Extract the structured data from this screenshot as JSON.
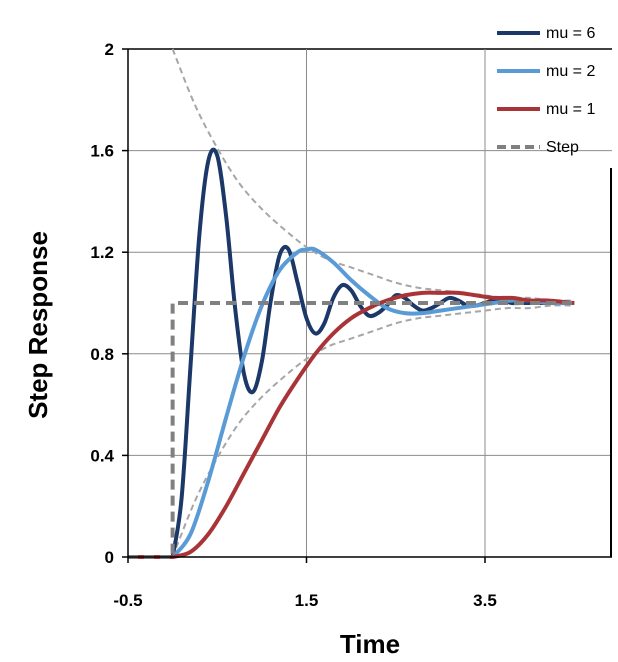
{
  "chart_data": {
    "type": "line",
    "title": "",
    "xlabel": "Time",
    "ylabel": "Step Response",
    "xlim": [
      -0.5,
      4.5
    ],
    "ylim": [
      0,
      2
    ],
    "x_ticks": [
      -0.5,
      1.5,
      3.5
    ],
    "x_tick_labels": [
      "-0.5",
      "1.5",
      "3.5"
    ],
    "y_ticks": [
      0,
      0.4,
      0.8,
      1.2,
      1.6,
      2
    ],
    "y_tick_labels": [
      "0",
      "0.4",
      "0.8",
      "1.2",
      "1.6",
      "2"
    ],
    "grid": true,
    "legend_position": "top-right",
    "series": [
      {
        "name": "mu = 6",
        "color": "#1b3868",
        "x": [
          -0.5,
          0.0,
          0.1,
          0.2,
          0.3,
          0.4,
          0.5,
          0.6,
          0.7,
          0.8,
          0.9,
          1.0,
          1.1,
          1.2,
          1.3,
          1.4,
          1.5,
          1.6,
          1.7,
          1.8,
          1.9,
          2.0,
          2.1,
          2.2,
          2.3,
          2.4,
          2.5,
          2.6,
          2.7,
          2.8,
          2.9,
          3.0,
          3.1,
          3.2,
          3.3,
          3.4,
          3.5,
          3.6,
          3.7,
          3.8,
          3.9,
          4.0,
          4.1,
          4.2,
          4.3,
          4.4,
          4.5
        ],
        "values": [
          0,
          0,
          0.23,
          0.75,
          1.27,
          1.56,
          1.58,
          1.34,
          0.98,
          0.72,
          0.65,
          0.77,
          1.01,
          1.19,
          1.21,
          1.08,
          0.94,
          0.88,
          0.92,
          1.02,
          1.07,
          1.05,
          0.99,
          0.95,
          0.96,
          0.99,
          1.03,
          1.02,
          0.99,
          0.97,
          0.98,
          1.0,
          1.02,
          1.01,
          0.99,
          0.99,
          1.0,
          1.01,
          1.01,
          1.0,
          1.0,
          1.0,
          1.0,
          1.0,
          1.0,
          1.0,
          1.0
        ]
      },
      {
        "name": "mu = 2",
        "color": "#5b9bd5",
        "x": [
          -0.5,
          0.0,
          0.2,
          0.4,
          0.6,
          0.8,
          1.0,
          1.2,
          1.4,
          1.5,
          1.6,
          1.8,
          2.0,
          2.2,
          2.4,
          2.6,
          2.8,
          3.0,
          3.2,
          3.4,
          3.6,
          3.8,
          4.0,
          4.2,
          4.5
        ],
        "values": [
          0,
          0,
          0.09,
          0.3,
          0.55,
          0.79,
          0.99,
          1.13,
          1.2,
          1.21,
          1.21,
          1.16,
          1.09,
          1.03,
          0.98,
          0.96,
          0.96,
          0.97,
          0.98,
          0.99,
          1.0,
          1.01,
          1.01,
          1.0,
          1.0
        ]
      },
      {
        "name": "mu = 1",
        "color": "#a93437",
        "x": [
          -0.5,
          0.0,
          0.2,
          0.4,
          0.6,
          0.8,
          1.0,
          1.2,
          1.4,
          1.6,
          1.8,
          2.0,
          2.2,
          2.4,
          2.6,
          2.8,
          3.0,
          3.2,
          3.4,
          3.6,
          3.8,
          4.0,
          4.2,
          4.5
        ],
        "values": [
          0,
          0,
          0.02,
          0.09,
          0.2,
          0.33,
          0.46,
          0.59,
          0.7,
          0.8,
          0.88,
          0.94,
          0.98,
          1.01,
          1.03,
          1.04,
          1.04,
          1.04,
          1.03,
          1.02,
          1.02,
          1.01,
          1.01,
          1.0
        ]
      },
      {
        "name": "Step",
        "color": "#808080",
        "x": [
          -0.5,
          0.0,
          0.0,
          4.5
        ],
        "values": [
          0,
          0,
          1,
          1
        ]
      }
    ],
    "envelopes": {
      "color": "#a6a6a6",
      "x": [
        0.0,
        0.25,
        0.5,
        0.75,
        1.0,
        1.25,
        1.5,
        1.75,
        2.0,
        2.25,
        2.5,
        2.75,
        3.0,
        3.25,
        3.5,
        3.75,
        4.0,
        4.25,
        4.5
      ],
      "upper": [
        2.0,
        1.78,
        1.61,
        1.47,
        1.37,
        1.29,
        1.22,
        1.17,
        1.14,
        1.11,
        1.08,
        1.06,
        1.05,
        1.04,
        1.03,
        1.02,
        1.02,
        1.01,
        1.01
      ],
      "lower": [
        0.0,
        0.22,
        0.39,
        0.53,
        0.63,
        0.71,
        0.78,
        0.83,
        0.86,
        0.89,
        0.92,
        0.94,
        0.95,
        0.96,
        0.97,
        0.98,
        0.98,
        0.99,
        0.99
      ]
    }
  }
}
